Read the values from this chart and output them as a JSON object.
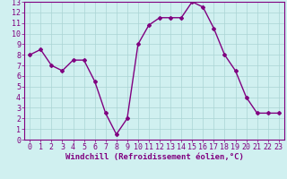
{
  "x": [
    0,
    1,
    2,
    3,
    4,
    5,
    6,
    7,
    8,
    9,
    10,
    11,
    12,
    13,
    14,
    15,
    16,
    17,
    18,
    19,
    20,
    21,
    22,
    23
  ],
  "y": [
    8,
    8.5,
    7,
    6.5,
    7.5,
    7.5,
    5.5,
    2.5,
    0.5,
    2,
    9,
    10.8,
    11.5,
    11.5,
    11.5,
    13,
    12.5,
    10.5,
    8,
    6.5,
    4,
    2.5,
    2.5,
    2.5
  ],
  "line_color": "#800080",
  "marker": "D",
  "markersize": 2,
  "linewidth": 1,
  "bg_color": "#d0f0f0",
  "grid_color": "#aad4d4",
  "xlabel": "Windchill (Refroidissement éolien,°C)",
  "xlabel_fontsize": 6.5,
  "tick_fontsize": 6,
  "ylim": [
    0,
    13
  ],
  "xlim": [
    -0.5,
    23.5
  ],
  "yticks": [
    0,
    1,
    2,
    3,
    4,
    5,
    6,
    7,
    8,
    9,
    10,
    11,
    12,
    13
  ],
  "xticks": [
    0,
    1,
    2,
    3,
    4,
    5,
    6,
    7,
    8,
    9,
    10,
    11,
    12,
    13,
    14,
    15,
    16,
    17,
    18,
    19,
    20,
    21,
    22,
    23
  ]
}
